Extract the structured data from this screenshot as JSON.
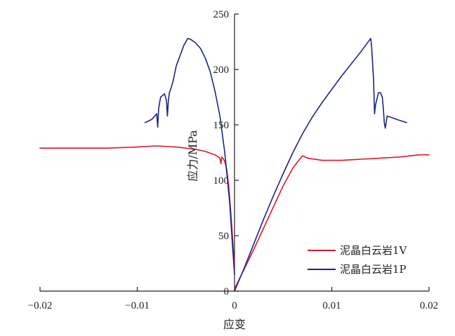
{
  "chart_data": {
    "type": "line",
    "xlabel": "应变",
    "ylabel": "应力/MPa",
    "xlim": [
      -0.02,
      0.02
    ],
    "ylim": [
      0,
      250
    ],
    "x_ticks": [
      -0.02,
      -0.01,
      0,
      0.01,
      0.02
    ],
    "x_tick_labels": [
      "−0.02",
      "−0.01",
      "0",
      "0.01",
      "0.02"
    ],
    "y_ticks": [
      0,
      50,
      100,
      150,
      200,
      250
    ],
    "y_tick_labels": [
      "0",
      "50",
      "100",
      "150",
      "200",
      "250"
    ],
    "grid": false,
    "legend": "bottom-right",
    "series": [
      {
        "name": "泥晶白云岩1V",
        "color": "#e0142a",
        "segments": [
          [
            [
              0,
              2
            ],
            [
              0.001,
              20
            ],
            [
              0.002,
              38
            ],
            [
              0.003,
              57
            ],
            [
              0.004,
              76
            ],
            [
              0.005,
              95
            ],
            [
              0.006,
              111
            ],
            [
              0.0066,
              118
            ],
            [
              0.007,
              122
            ],
            [
              0.0075,
              120
            ],
            [
              0.009,
              118
            ],
            [
              0.011,
              118
            ],
            [
              0.013,
              119
            ],
            [
              0.015,
              120
            ],
            [
              0.017,
              121
            ],
            [
              0.019,
              123
            ],
            [
              0.02,
              123
            ]
          ],
          [
            [
              0,
              22
            ],
            [
              -0.0002,
              48
            ],
            [
              -0.0004,
              73
            ],
            [
              -0.0006,
              95
            ],
            [
              -0.0008,
              110
            ],
            [
              -0.001,
              117
            ],
            [
              -0.0012,
              120
            ],
            [
              -0.0013,
              121
            ],
            [
              -0.0014,
              115
            ],
            [
              -0.0015,
              120
            ],
            [
              -0.002,
              123
            ],
            [
              -0.003,
              126
            ],
            [
              -0.004,
              128
            ],
            [
              -0.006,
              130
            ],
            [
              -0.008,
              131
            ],
            [
              -0.01,
              130
            ],
            [
              -0.013,
              129
            ],
            [
              -0.016,
              129
            ],
            [
              -0.02,
              129
            ]
          ]
        ]
      },
      {
        "name": "泥晶白云岩1P",
        "color": "#1b2585",
        "segments": [
          [
            [
              0,
              0
            ],
            [
              0.001,
              21
            ],
            [
              0.002,
              43
            ],
            [
              0.003,
              65
            ],
            [
              0.004,
              86
            ],
            [
              0.005,
              106
            ],
            [
              0.006,
              125
            ],
            [
              0.007,
              142
            ],
            [
              0.008,
              157
            ],
            [
              0.009,
              170
            ],
            [
              0.01,
              182
            ],
            [
              0.011,
              194
            ],
            [
              0.012,
              205
            ],
            [
              0.013,
              216
            ],
            [
              0.0135,
              222
            ],
            [
              0.014,
              228
            ],
            [
              0.0141,
              220
            ],
            [
              0.0142,
              205
            ],
            [
              0.0143,
              190
            ],
            [
              0.0144,
              160
            ],
            [
              0.0145,
              168
            ],
            [
              0.0148,
              179
            ],
            [
              0.015,
              179
            ],
            [
              0.0152,
              175
            ],
            [
              0.0153,
              165
            ],
            [
              0.0154,
              152
            ],
            [
              0.0155,
              147
            ],
            [
              0.0157,
              158
            ],
            [
              0.016,
              157
            ],
            [
              0.017,
              154
            ],
            [
              0.0177,
              152
            ]
          ],
          [
            [
              0,
              15
            ],
            [
              -0.0002,
              40
            ],
            [
              -0.0005,
              80
            ],
            [
              -0.001,
              125
            ],
            [
              -0.0015,
              158
            ],
            [
              -0.002,
              180
            ],
            [
              -0.0025,
              198
            ],
            [
              -0.003,
              210
            ],
            [
              -0.0035,
              219
            ],
            [
              -0.004,
              224
            ],
            [
              -0.0045,
              227
            ],
            [
              -0.0048,
              228
            ],
            [
              -0.0052,
              222
            ],
            [
              -0.006,
              203
            ],
            [
              -0.0063,
              190
            ],
            [
              -0.0065,
              184
            ],
            [
              -0.0067,
              179
            ],
            [
              -0.0068,
              172
            ],
            [
              -0.0069,
              158
            ],
            [
              -0.007,
              172
            ],
            [
              -0.0072,
              178
            ],
            [
              -0.0076,
              175
            ],
            [
              -0.0078,
              165
            ],
            [
              -0.0079,
              148
            ],
            [
              -0.008,
              160
            ],
            [
              -0.0085,
              155
            ],
            [
              -0.0092,
              152
            ]
          ]
        ]
      }
    ]
  }
}
